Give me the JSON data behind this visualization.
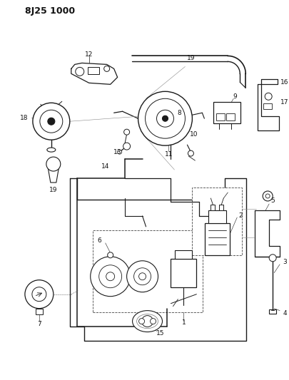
{
  "title": "8J25 1000",
  "bg_color": "#ffffff",
  "line_color": "#1a1a1a",
  "label_color": "#111111",
  "label_fontsize": 6.5,
  "title_fontsize": 9,
  "figsize": [
    4.05,
    5.33
  ],
  "dpi": 100
}
